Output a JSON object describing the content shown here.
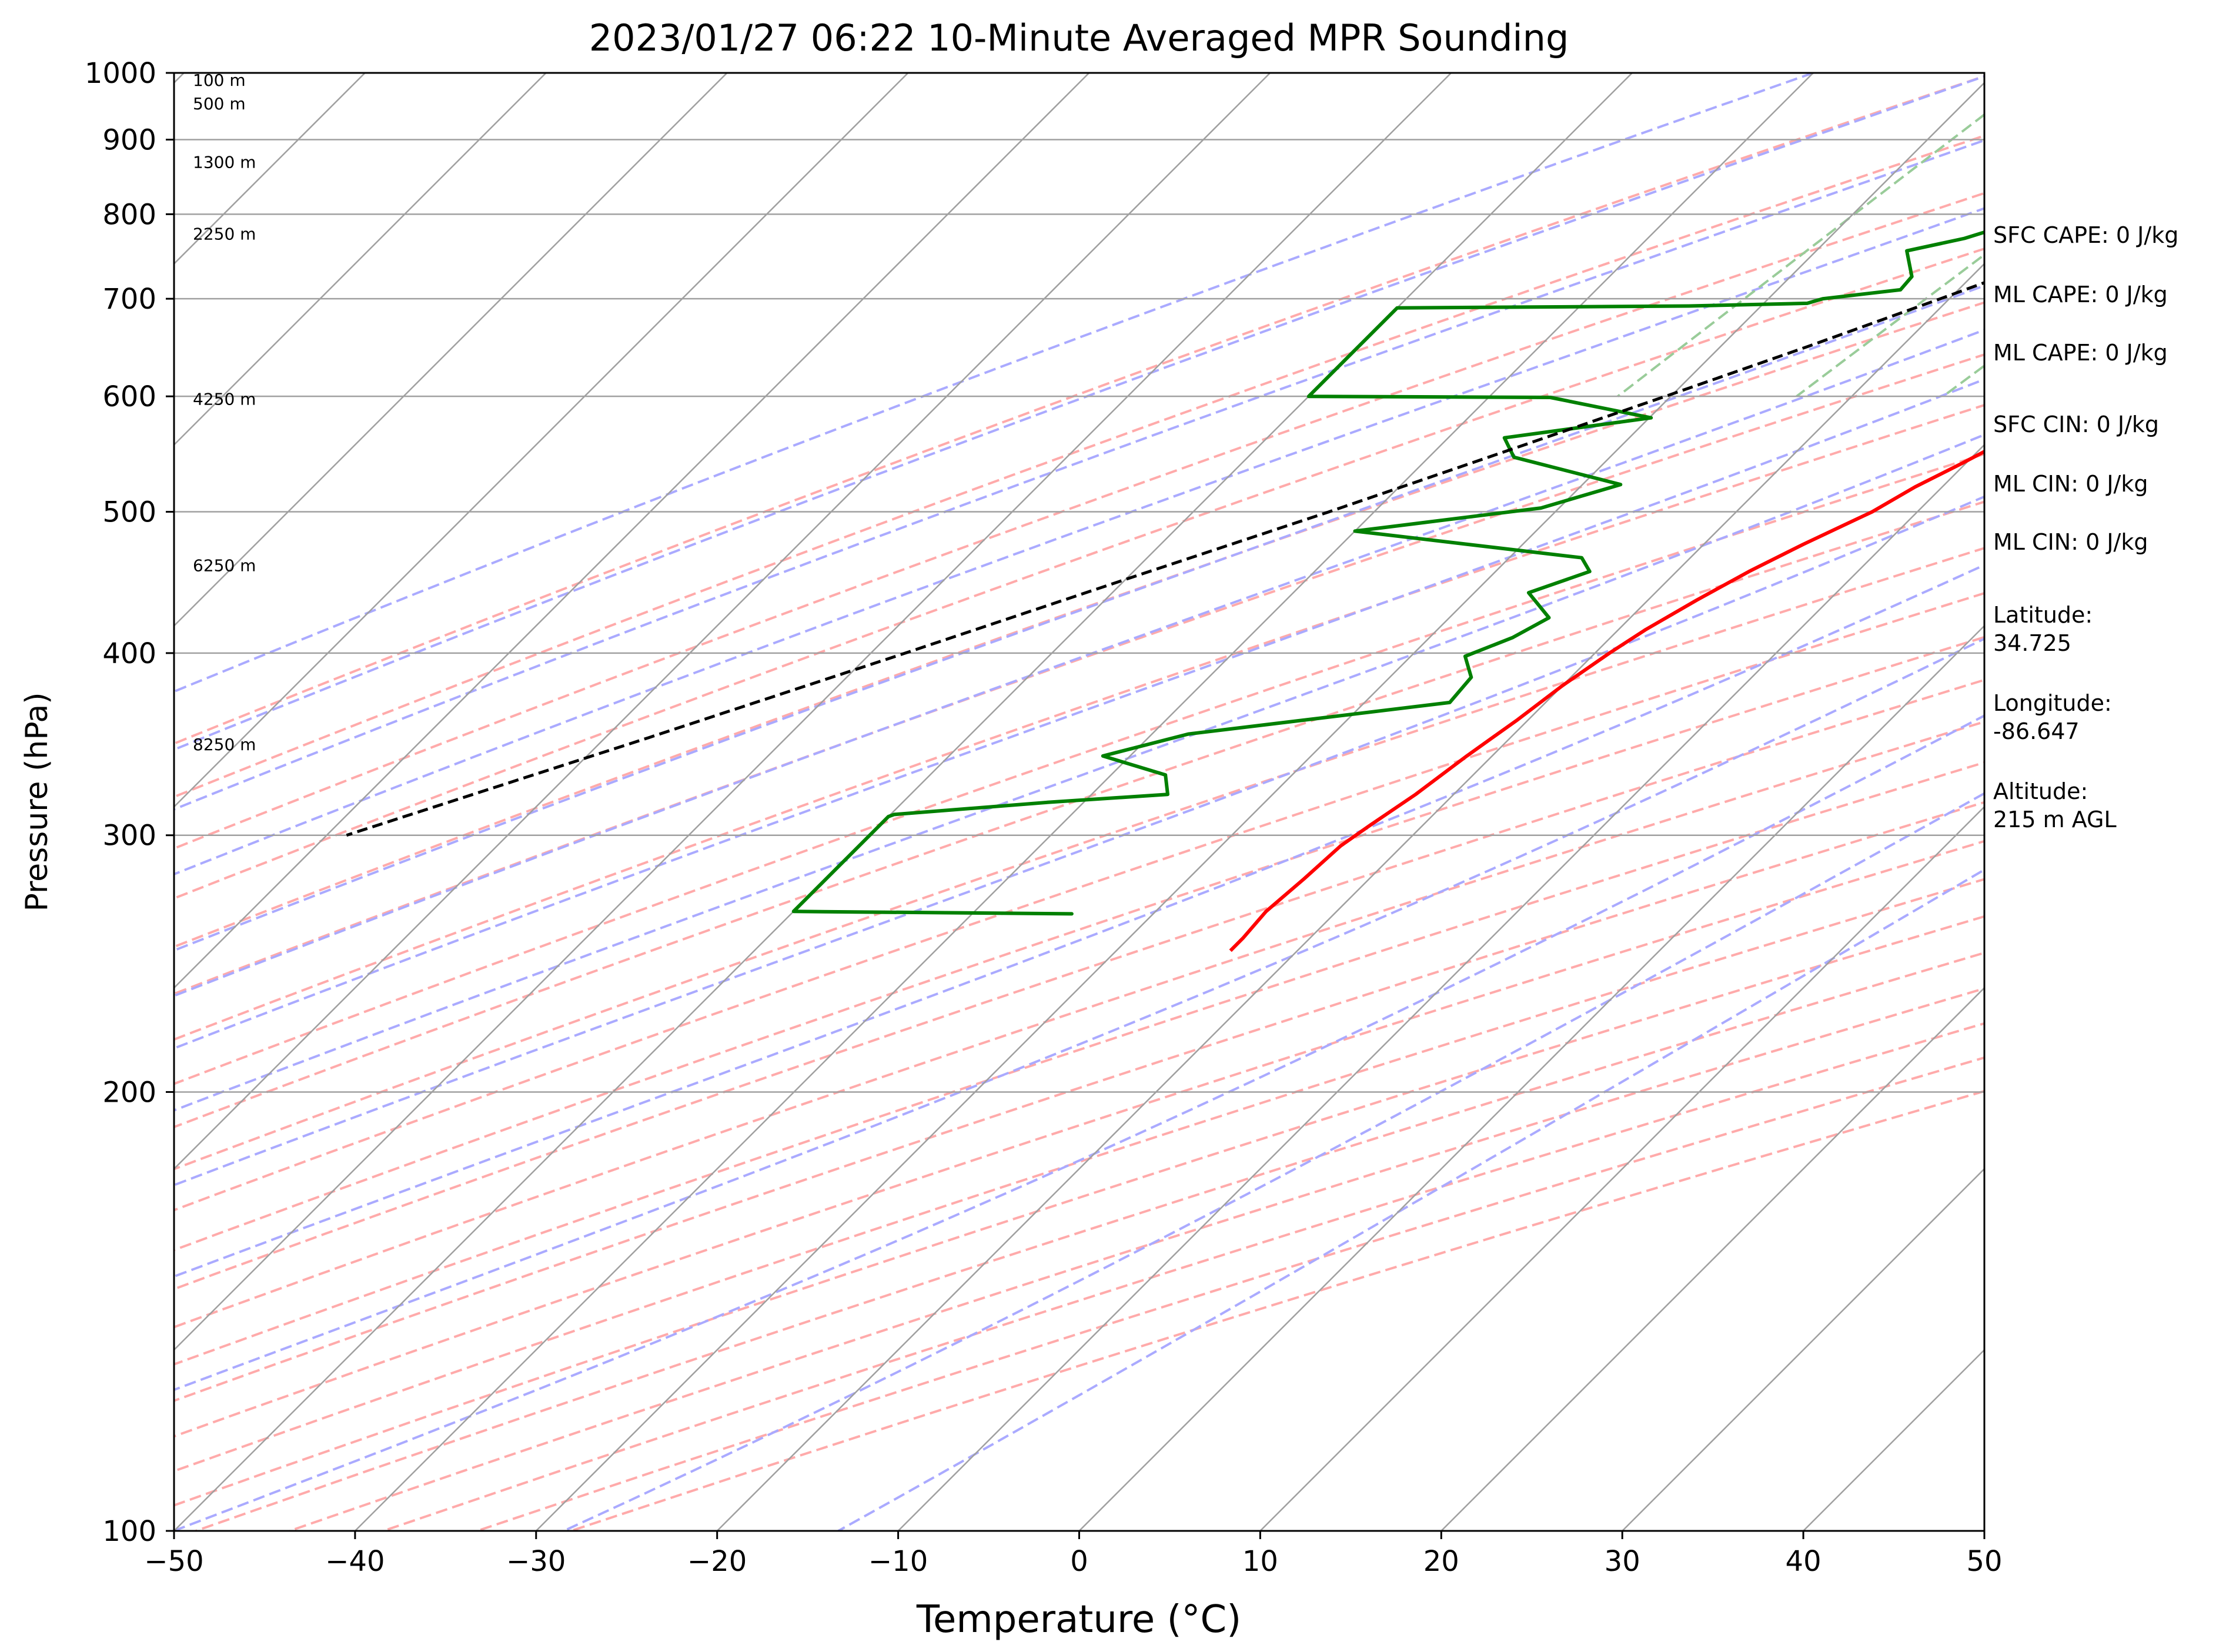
{
  "chart_data": {
    "type": "line",
    "title": "2023/01/27 06:22 10-Minute Averaged MPR Sounding",
    "xlabel": "Temperature (°C)",
    "ylabel": "Pressure (hPa)",
    "xlim": [
      -50,
      50
    ],
    "ylim": [
      1000,
      100
    ],
    "y_scale": "log",
    "x_ticks": [
      -50,
      -40,
      -30,
      -20,
      -10,
      0,
      10,
      20,
      30,
      40,
      50
    ],
    "x_tick_labels": [
      "−50",
      "−40",
      "−30",
      "−20",
      "−10",
      "0",
      "10",
      "20",
      "30",
      "40",
      "50"
    ],
    "y_ticks": [
      100,
      200,
      300,
      400,
      500,
      600,
      700,
      800,
      900,
      1000
    ],
    "y_tick_labels": [
      "100",
      "200",
      "300",
      "400",
      "500",
      "600",
      "700",
      "800",
      "900",
      "1000"
    ],
    "grid": true,
    "skew_angle_deg": 45,
    "colors": {
      "temperature": "#ff0000",
      "dewpoint": "#008000",
      "parcel": "#000000",
      "isotherm": "#a0a0a0",
      "dry_adiabat": "#ffaaaa",
      "moist_adiabat": "#aaaaff",
      "mixing_ratio": "#99cc99"
    },
    "series": [
      {
        "role": "temperature",
        "points": [
          [
            0.2,
            1000
          ],
          [
            1.3,
            980
          ],
          [
            1.5,
            960
          ],
          [
            -0.3,
            940
          ],
          [
            -2.0,
            920
          ],
          [
            -3.0,
            900
          ],
          [
            -3.6,
            880
          ],
          [
            -3.9,
            860
          ],
          [
            -3.5,
            845
          ],
          [
            -3.7,
            830
          ],
          [
            -3.2,
            815
          ],
          [
            -3.2,
            790
          ],
          [
            -3.5,
            760
          ],
          [
            -3.7,
            730
          ],
          [
            -3.4,
            700
          ],
          [
            -3.4,
            680
          ],
          [
            -4.0,
            660
          ],
          [
            -5.0,
            630
          ],
          [
            -6.5,
            600
          ],
          [
            -8.5,
            570
          ],
          [
            -10.2,
            540
          ],
          [
            -11.5,
            520
          ],
          [
            -12.5,
            500
          ],
          [
            -14.5,
            475
          ],
          [
            -16.0,
            455
          ],
          [
            -17.3,
            435
          ],
          [
            -18.5,
            415
          ],
          [
            -19.2,
            400
          ],
          [
            -20.0,
            380
          ],
          [
            -20.6,
            360
          ],
          [
            -21.4,
            340
          ],
          [
            -22.1,
            320
          ],
          [
            -22.9,
            305
          ],
          [
            -23.4,
            295
          ],
          [
            -23.6,
            280
          ],
          [
            -23.9,
            266
          ],
          [
            -23.7,
            255
          ],
          [
            -23.7,
            250
          ]
        ]
      },
      {
        "role": "dewpoint",
        "points": [
          [
            -3.0,
            1000
          ],
          [
            -6.0,
            980
          ],
          [
            -7.5,
            960
          ],
          [
            -9.5,
            940
          ],
          [
            -13.0,
            920
          ],
          [
            -14.0,
            905
          ],
          [
            -17.0,
            900
          ],
          [
            -20.0,
            890
          ],
          [
            -20.5,
            880
          ],
          [
            -20.4,
            860
          ],
          [
            -20.5,
            850
          ],
          [
            -21.2,
            840
          ],
          [
            -22.3,
            830
          ],
          [
            -22.8,
            820
          ],
          [
            -22.1,
            800
          ],
          [
            -21.0,
            785
          ],
          [
            -22.5,
            770
          ],
          [
            -25.0,
            755
          ],
          [
            -23.3,
            725
          ],
          [
            -23.2,
            710
          ],
          [
            -27.0,
            700
          ],
          [
            -27.6,
            695
          ],
          [
            -34.0,
            692
          ],
          [
            -50,
            690
          ],
          [
            -50,
            600
          ],
          [
            -36.6,
            599
          ],
          [
            -29.9,
            580
          ],
          [
            -36.9,
            562
          ],
          [
            -35.3,
            545
          ],
          [
            -27.9,
            522
          ],
          [
            -31.0,
            503
          ],
          [
            -40.0,
            485
          ],
          [
            -26.0,
            465
          ],
          [
            -24.8,
            455
          ],
          [
            -27.0,
            440
          ],
          [
            -24.5,
            423
          ],
          [
            -25.4,
            410
          ],
          [
            -27.0,
            398
          ],
          [
            -25.5,
            385
          ],
          [
            -25.3,
            370
          ],
          [
            -38.0,
            352
          ],
          [
            -41.5,
            340
          ],
          [
            -37.0,
            330
          ],
          [
            -35.8,
            320
          ],
          [
            -42.0,
            316
          ],
          [
            -49.8,
            310
          ],
          [
            -50,
            309
          ],
          [
            -50,
            266
          ],
          [
            -34.5,
            265
          ],
          [
            -50,
            266
          ]
        ]
      },
      {
        "role": "parcel",
        "points": [
          [
            0.2,
            1000
          ],
          [
            -1.5,
            980
          ],
          [
            -3.5,
            950
          ],
          [
            -6.1,
            900
          ],
          [
            -9.0,
            850
          ],
          [
            -12.5,
            800
          ],
          [
            -16.3,
            750
          ],
          [
            -20.5,
            700
          ],
          [
            -25.1,
            650
          ],
          [
            -30.3,
            600
          ],
          [
            -36.1,
            550
          ],
          [
            -42.5,
            500
          ],
          [
            -49.9,
            450
          ],
          [
            -58.1,
            400
          ],
          [
            -67.6,
            350
          ],
          [
            -78.9,
            300
          ]
        ]
      }
    ],
    "height_labels": [
      {
        "text": "100 m",
        "p": 988
      },
      {
        "text": "500 m",
        "p": 952
      },
      {
        "text": "1300 m",
        "p": 868
      },
      {
        "text": "2250 m",
        "p": 775
      },
      {
        "text": "4250 m",
        "p": 597
      },
      {
        "text": "6250 m",
        "p": 459
      },
      {
        "text": "8250 m",
        "p": 346
      }
    ],
    "background_isotherms": [
      -140,
      -130,
      -120,
      -110,
      -100,
      -90,
      -80,
      -70,
      -60,
      -50,
      -40,
      -30,
      -20,
      -10,
      0,
      10,
      20,
      30,
      40,
      50
    ],
    "background_dry_adiabats_c": [
      -30,
      -20,
      -10,
      0,
      10,
      20,
      30,
      40,
      50,
      60,
      70,
      80,
      90,
      100,
      110,
      120,
      130,
      140,
      150,
      160,
      170,
      180,
      190,
      200
    ],
    "background_moist_adiabats_c": [
      -40,
      -30,
      -20,
      -10,
      0,
      5,
      10,
      15,
      20,
      25,
      30,
      35,
      40,
      45
    ],
    "background_mixing_ratios_gkg": [
      0.4,
      1,
      2,
      3,
      4,
      6,
      8,
      10,
      14,
      18
    ],
    "mixing_ratio_top_hpa": 600
  },
  "info_panel": {
    "sfc_cape": "SFC CAPE: 0 J/kg",
    "ml_cape_1": "ML CAPE: 0 J/kg",
    "ml_cape_2": "ML CAPE: 0 J/kg",
    "sfc_cin": "SFC CIN: 0 J/kg",
    "ml_cin_1": "ML CIN: 0 J/kg",
    "ml_cin_2": "ML CIN: 0 J/kg",
    "latitude": "Latitude:\n34.725",
    "longitude": "Longitude:\n-86.647",
    "altitude": "Altitude:\n215 m AGL"
  }
}
